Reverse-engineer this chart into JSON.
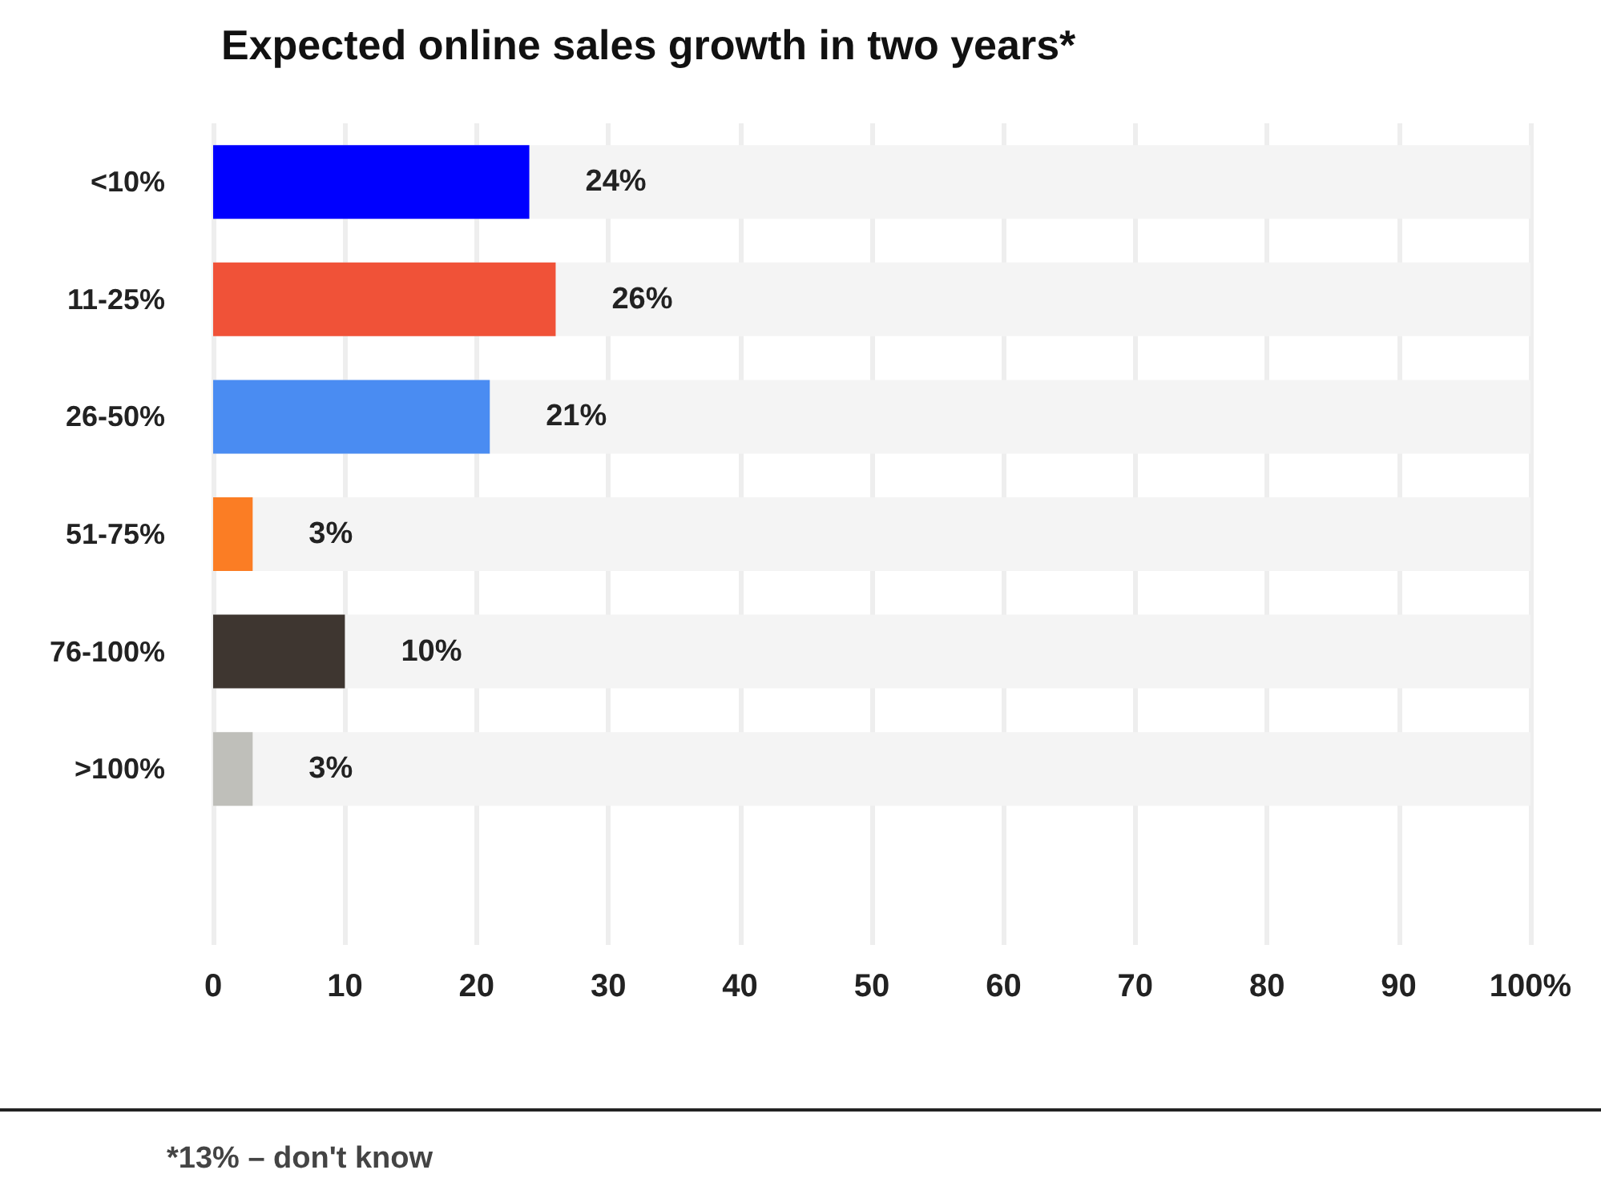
{
  "chart_data": {
    "type": "bar",
    "orientation": "horizontal",
    "title": "Expected online sales growth in two years*",
    "categories": [
      "<10%",
      "11-25%",
      "26-50%",
      "51-75%",
      "76-100%",
      ">100%"
    ],
    "values": [
      24,
      26,
      21,
      3,
      10,
      3
    ],
    "colors": [
      "#0000ff",
      "#f05238",
      "#4a8cf2",
      "#fb7d24",
      "#3e3630",
      "#bfbfba"
    ],
    "value_labels": [
      "24%",
      "26%",
      "21%",
      "3%",
      "10%",
      "3%"
    ],
    "xlim": [
      0,
      100
    ],
    "xticks": [
      0,
      10,
      20,
      30,
      40,
      50,
      60,
      70,
      80,
      90,
      {
        "value": 100,
        "label": "100%"
      }
    ],
    "grid": "x",
    "annotations": [
      "*13% – don't know"
    ]
  }
}
